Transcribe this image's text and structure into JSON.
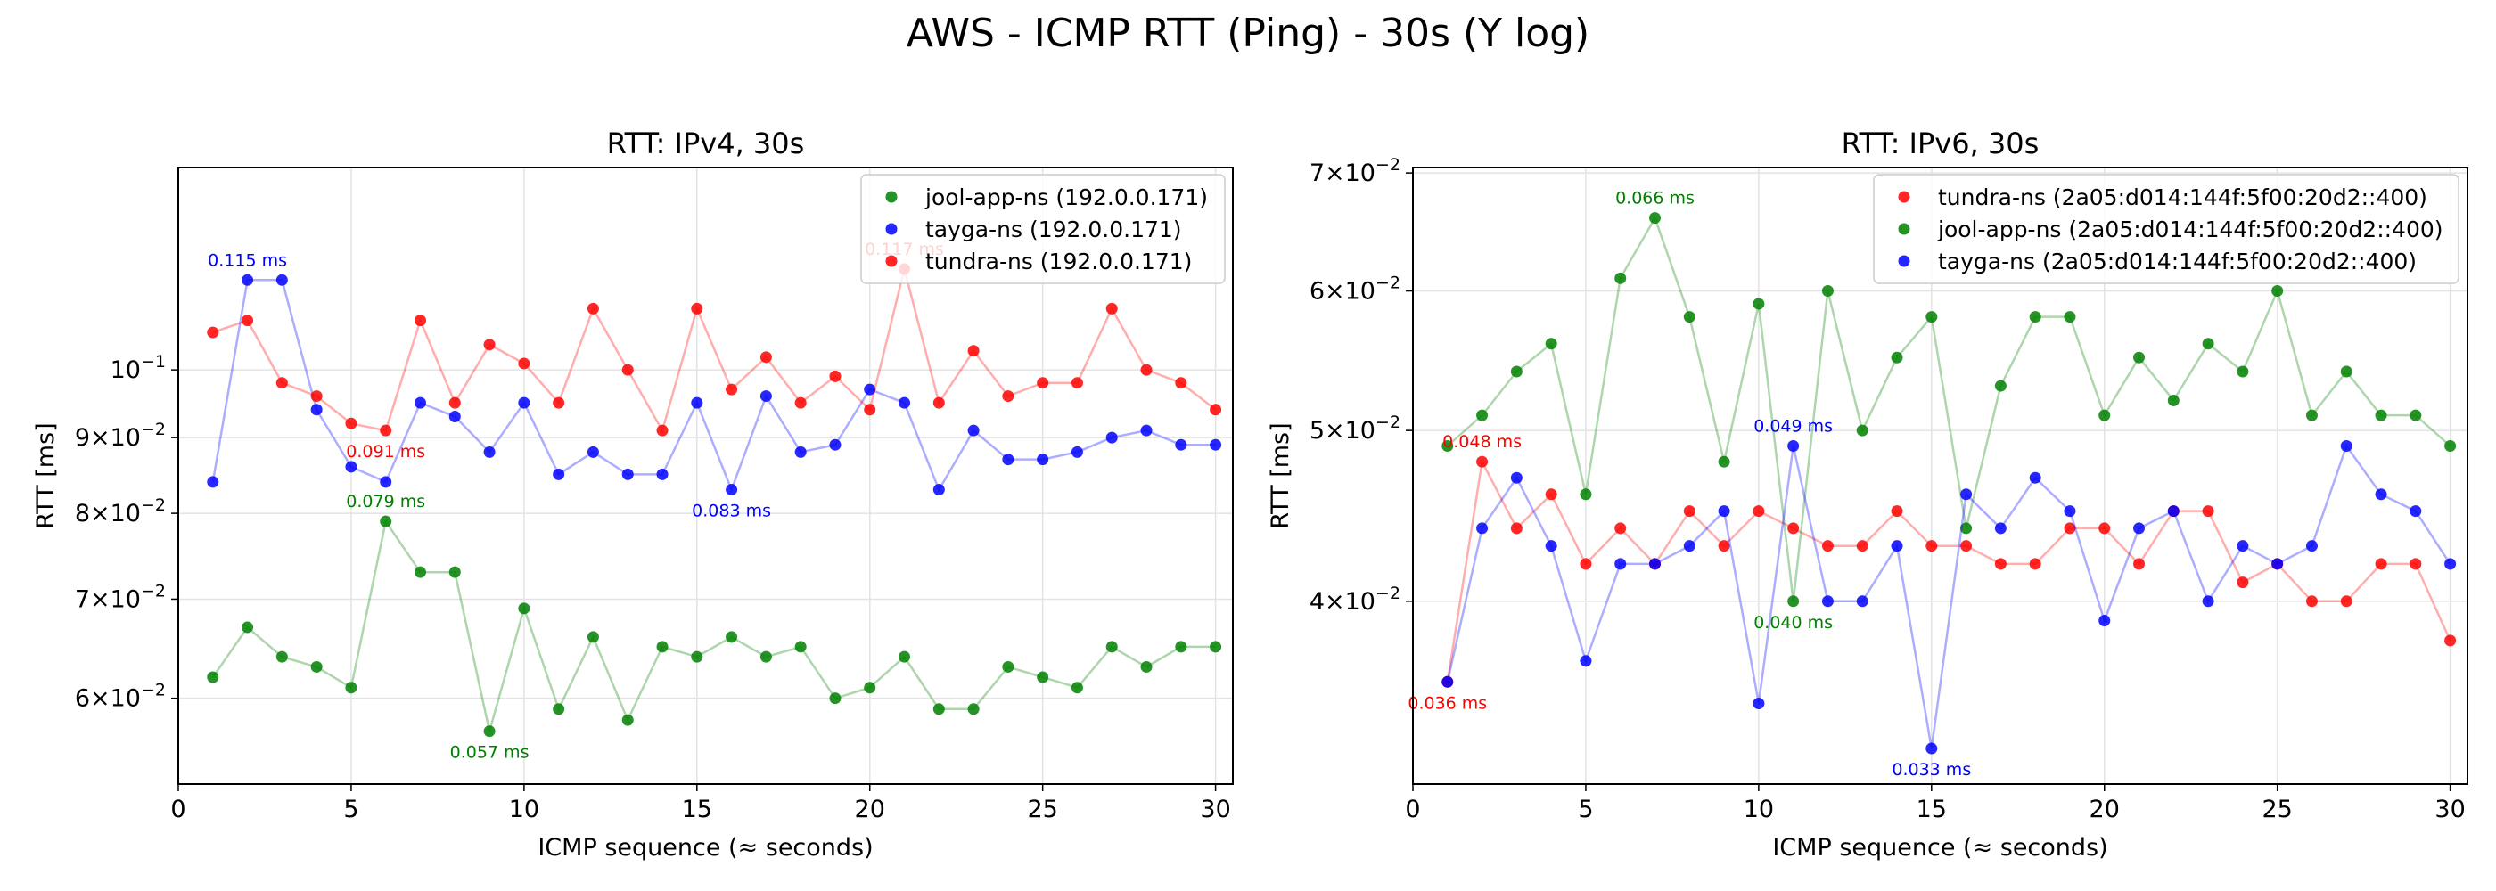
{
  "figure": {
    "title": "AWS - ICMP RTT (Ping) - 30s (Y log)"
  },
  "chart_data": [
    {
      "type": "line",
      "title": "RTT: IPv4, 30s",
      "xlabel": "ICMP sequence (≈ seconds)",
      "ylabel": "RTT [ms]",
      "xlim": [
        0,
        30.5
      ],
      "ylim": [
        0.0525,
        0.137
      ],
      "yscale": "log",
      "grid": true,
      "legend": "top-right",
      "x_ticks": [
        {
          "value": 0,
          "label": "0"
        },
        {
          "value": 5,
          "label": "5"
        },
        {
          "value": 10,
          "label": "10"
        },
        {
          "value": 15,
          "label": "15"
        },
        {
          "value": 20,
          "label": "20"
        },
        {
          "value": 25,
          "label": "25"
        },
        {
          "value": 30,
          "label": "30"
        }
      ],
      "y_ticks": [
        {
          "value": 0.06,
          "mantissa": "6",
          "suffix": "×10",
          "exp": "−2"
        },
        {
          "value": 0.07,
          "mantissa": "7",
          "suffix": "×10",
          "exp": "−2"
        },
        {
          "value": 0.08,
          "mantissa": "8",
          "suffix": "×10",
          "exp": "−2"
        },
        {
          "value": 0.09,
          "mantissa": "9",
          "suffix": "×10",
          "exp": "−2"
        },
        {
          "value": 0.1,
          "mantissa": "",
          "suffix": "10",
          "exp": "−1"
        }
      ],
      "x": [
        1,
        2,
        3,
        4,
        5,
        6,
        7,
        8,
        9,
        10,
        11,
        12,
        13,
        14,
        15,
        16,
        17,
        18,
        19,
        20,
        21,
        22,
        23,
        24,
        25,
        26,
        27,
        28,
        29,
        30
      ],
      "series": [
        {
          "name": "jool-app-ns (192.0.0.171)",
          "color": "#008000",
          "values": [
            0.062,
            0.067,
            0.064,
            0.063,
            0.061,
            0.079,
            0.073,
            0.073,
            0.057,
            0.069,
            0.059,
            0.066,
            0.058,
            0.065,
            0.064,
            0.066,
            0.064,
            0.065,
            0.06,
            0.061,
            0.064,
            0.059,
            0.059,
            0.063,
            0.062,
            0.061,
            0.065,
            0.063,
            0.065,
            0.065
          ]
        },
        {
          "name": "tayga-ns (192.0.0.171)",
          "color": "#0000ff",
          "values": [
            0.084,
            0.115,
            0.115,
            0.094,
            0.086,
            0.084,
            0.095,
            0.093,
            0.088,
            0.095,
            0.085,
            0.088,
            0.085,
            0.085,
            0.095,
            0.083,
            0.096,
            0.088,
            0.089,
            0.097,
            0.095,
            0.083,
            0.091,
            0.087,
            0.087,
            0.088,
            0.09,
            0.091,
            0.089,
            0.089
          ]
        },
        {
          "name": "tundra-ns (192.0.0.171)",
          "color": "#ff0000",
          "values": [
            0.106,
            0.108,
            0.098,
            0.096,
            0.092,
            0.091,
            0.108,
            0.095,
            0.104,
            0.101,
            0.095,
            0.11,
            0.1,
            0.091,
            0.11,
            0.097,
            0.102,
            0.095,
            0.099,
            0.094,
            0.117,
            0.095,
            0.103,
            0.096,
            0.098,
            0.098,
            0.11,
            0.1,
            0.098,
            0.094
          ]
        }
      ],
      "annotations": [
        {
          "text": "0.115 ms",
          "x": 2,
          "y": 0.115,
          "color": "#0000ff",
          "place": "above"
        },
        {
          "text": "0.091 ms",
          "x": 6,
          "y": 0.091,
          "color": "#ff0000",
          "place": "below"
        },
        {
          "text": "0.079 ms",
          "x": 6,
          "y": 0.079,
          "color": "#008000",
          "place": "above"
        },
        {
          "text": "0.083 ms",
          "x": 16,
          "y": 0.083,
          "color": "#0000ff",
          "place": "below"
        },
        {
          "text": "0.057 ms",
          "x": 9,
          "y": 0.057,
          "color": "#008000",
          "place": "below"
        },
        {
          "text": "0.117 ms",
          "x": 21,
          "y": 0.117,
          "color": "#ff0000",
          "place": "above"
        }
      ]
    },
    {
      "type": "line",
      "title": "RTT: IPv6, 30s",
      "xlabel": "ICMP sequence (≈ seconds)",
      "ylabel": "RTT [ms]",
      "xlim": [
        0,
        30.5
      ],
      "ylim": [
        0.0315,
        0.0705
      ],
      "yscale": "log",
      "grid": true,
      "legend": "top-right",
      "x_ticks": [
        {
          "value": 0,
          "label": "0"
        },
        {
          "value": 5,
          "label": "5"
        },
        {
          "value": 10,
          "label": "10"
        },
        {
          "value": 15,
          "label": "15"
        },
        {
          "value": 20,
          "label": "20"
        },
        {
          "value": 25,
          "label": "25"
        },
        {
          "value": 30,
          "label": "30"
        }
      ],
      "y_ticks": [
        {
          "value": 0.04,
          "mantissa": "4",
          "suffix": "×10",
          "exp": "−2"
        },
        {
          "value": 0.05,
          "mantissa": "5",
          "suffix": "×10",
          "exp": "−2"
        },
        {
          "value": 0.06,
          "mantissa": "6",
          "suffix": "×10",
          "exp": "−2"
        },
        {
          "value": 0.07,
          "mantissa": "7",
          "suffix": "×10",
          "exp": "−2"
        }
      ],
      "x": [
        1,
        2,
        3,
        4,
        5,
        6,
        7,
        8,
        9,
        10,
        11,
        12,
        13,
        14,
        15,
        16,
        17,
        18,
        19,
        20,
        21,
        22,
        23,
        24,
        25,
        26,
        27,
        28,
        29,
        30
      ],
      "series": [
        {
          "name": "tundra-ns (2a05:d014:144f:5f00:20d2::400)",
          "color": "#ff0000",
          "values": [
            0.036,
            0.048,
            0.044,
            0.046,
            0.042,
            0.044,
            0.042,
            0.045,
            0.043,
            0.045,
            0.044,
            0.043,
            0.043,
            0.045,
            0.043,
            0.043,
            0.042,
            0.042,
            0.044,
            0.044,
            0.042,
            0.045,
            0.045,
            0.041,
            0.042,
            0.04,
            0.04,
            0.042,
            0.042,
            0.038
          ]
        },
        {
          "name": "jool-app-ns (2a05:d014:144f:5f00:20d2::400)",
          "color": "#008000",
          "values": [
            0.049,
            0.051,
            0.054,
            0.056,
            0.046,
            0.061,
            0.066,
            0.058,
            0.048,
            0.059,
            0.04,
            0.06,
            0.05,
            0.055,
            0.058,
            0.044,
            0.053,
            0.058,
            0.058,
            0.051,
            0.055,
            0.052,
            0.056,
            0.054,
            0.06,
            0.051,
            0.054,
            0.051,
            0.051,
            0.049
          ]
        },
        {
          "name": "tayga-ns (2a05:d014:144f:5f00:20d2::400)",
          "color": "#0000ff",
          "values": [
            0.036,
            0.044,
            0.047,
            0.043,
            0.037,
            0.042,
            0.042,
            0.043,
            0.045,
            0.035,
            0.049,
            0.04,
            0.04,
            0.043,
            0.033,
            0.046,
            0.044,
            0.047,
            0.045,
            0.039,
            0.044,
            0.045,
            0.04,
            0.043,
            0.042,
            0.043,
            0.049,
            0.046,
            0.045,
            0.042
          ]
        }
      ],
      "annotations": [
        {
          "text": "0.066 ms",
          "x": 7,
          "y": 0.066,
          "color": "#008000",
          "place": "above"
        },
        {
          "text": "0.048 ms",
          "x": 2,
          "y": 0.048,
          "color": "#ff0000",
          "place": "above"
        },
        {
          "text": "0.049 ms",
          "x": 11,
          "y": 0.049,
          "color": "#0000ff",
          "place": "above"
        },
        {
          "text": "0.040 ms",
          "x": 11,
          "y": 0.04,
          "color": "#008000",
          "place": "below"
        },
        {
          "text": "0.036 ms",
          "x": 1,
          "y": 0.036,
          "color": "#ff0000",
          "place": "below"
        },
        {
          "text": "0.033 ms",
          "x": 15,
          "y": 0.033,
          "color": "#0000ff",
          "place": "below"
        }
      ]
    }
  ]
}
